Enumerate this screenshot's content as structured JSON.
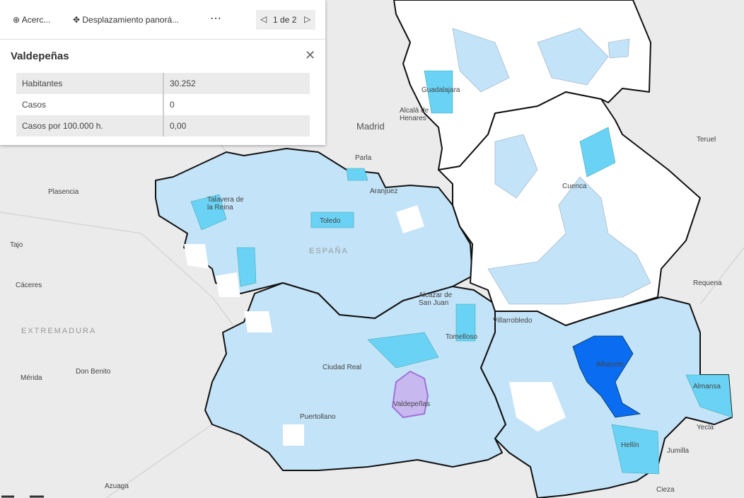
{
  "toolbar": {
    "zoom": "Acerc...",
    "pan": "Desplazamiento panorá...",
    "pager": "1 de 2"
  },
  "popup": {
    "title": "Valdepeñas",
    "rows": [
      [
        "Habitantes",
        "30.252"
      ],
      [
        "Casos",
        "0"
      ],
      [
        "Casos por 100.000 h.",
        "0,00"
      ]
    ]
  },
  "map": {
    "labels": [
      [
        "Guadalajara"
      ],
      [
        "Alcalá de",
        "Henares"
      ],
      [
        "Madrid"
      ],
      [
        "Teruel"
      ],
      [
        "Parla"
      ],
      [
        "Aranjuez"
      ],
      [
        "Cuenca"
      ],
      [
        "Plasencia"
      ],
      [
        "Talavera de",
        "la Reina"
      ],
      [
        "Toledo"
      ],
      [
        "ESPAÑA"
      ],
      [
        "Tajo"
      ],
      [
        "Cáceres"
      ],
      [
        "Requena"
      ],
      [
        "Alcázar de",
        "San Juan"
      ],
      [
        "Villarrobledo"
      ],
      [
        "Tomelloso"
      ],
      [
        "EXTREMADURA"
      ],
      [
        "Don Benito"
      ],
      [
        "Ciudad Real"
      ],
      [
        "Albacete"
      ],
      [
        "Mérida"
      ],
      [
        "Valdepeñas"
      ],
      [
        "Almansa"
      ],
      [
        "Puertollano"
      ],
      [
        "Yecla"
      ],
      [
        "Jumilla"
      ],
      [
        "Hellín"
      ],
      [
        "Azuaga"
      ],
      [
        "Cieza"
      ]
    ]
  }
}
